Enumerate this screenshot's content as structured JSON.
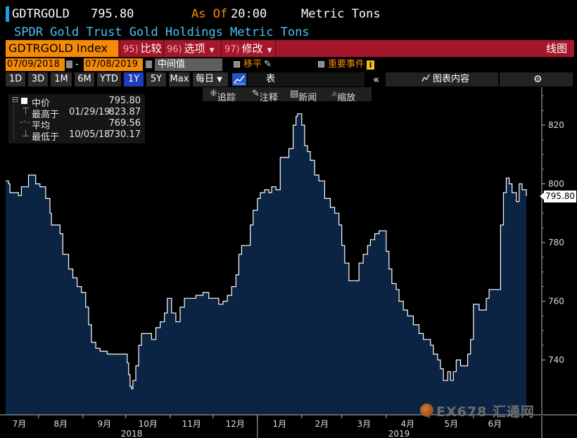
{
  "header": {
    "ticker": "GDTRGOLD",
    "last_value": "795.80",
    "as_of": "As Of",
    "time": "20:00",
    "unit": "Metric Tons",
    "subtitle": "SPDR Gold Trust Gold Holdings Metric Tons"
  },
  "menubar": {
    "index_label": "GDTRGOLD Index",
    "compare": {
      "num": "95)",
      "label": "比较"
    },
    "options": {
      "num": "96)",
      "label": "选项"
    },
    "edit": {
      "num": "97)",
      "label": "修改"
    },
    "chart_type": "线图"
  },
  "daterow": {
    "start_date": "07/09/2018",
    "dash": "-",
    "end_date": "07/08/2019",
    "price_field": "中间值",
    "shift_label": "移平",
    "events_label": "重要事件"
  },
  "periods": [
    "1D",
    "3D",
    "1M",
    "6M",
    "YTD",
    "1Y",
    "5Y",
    "Max"
  ],
  "selected_period": "1Y",
  "frequency": "每日",
  "table_label": "表",
  "chart_content_label": "图表内容",
  "tools": {
    "track": "追踪",
    "annotate": "注释",
    "news": "新闻",
    "zoom": "缩放"
  },
  "legend": {
    "mid": {
      "label": "中价",
      "value": "795.80"
    },
    "high": {
      "label": "最高于",
      "date": "01/29/19",
      "value": "823.87"
    },
    "avg": {
      "label": "平均",
      "value": "769.56"
    },
    "low": {
      "label": "最低于",
      "date": "10/05/18",
      "value": "730.17"
    }
  },
  "colors": {
    "accent": "#f58a07",
    "bar": "#a4162a",
    "fill": "#0c2444",
    "line": "#ffffff"
  },
  "watermark": "EX678 汇通网",
  "chart_data": {
    "type": "area",
    "title": "SPDR Gold Trust Gold Holdings Metric Tons",
    "ylabel": "Metric Tons",
    "ylim": [
      720,
      836
    ],
    "yticks": [
      740,
      760,
      780,
      800,
      820
    ],
    "current_value": "795.80",
    "x_month_labels": [
      "7月",
      "8月",
      "9月",
      "10月",
      "11月",
      "12月",
      "1月",
      "2月",
      "3月",
      "4月",
      "5月",
      "6月"
    ],
    "x_year_labels": [
      "2018",
      "2019"
    ],
    "x_start_date": "2018-07-09",
    "x_end_date": "2019-07-08",
    "points": [
      [
        "2018-07-09",
        801
      ],
      [
        "2018-07-11",
        800
      ],
      [
        "2018-07-12",
        797
      ],
      [
        "2018-07-18",
        796
      ],
      [
        "2018-07-20",
        799
      ],
      [
        "2018-07-24",
        799
      ],
      [
        "2018-07-25",
        803
      ],
      [
        "2018-07-27",
        803
      ],
      [
        "2018-07-30",
        800
      ],
      [
        "2018-08-02",
        799
      ],
      [
        "2018-08-06",
        795
      ],
      [
        "2018-08-09",
        790
      ],
      [
        "2018-08-10",
        786
      ],
      [
        "2018-08-15",
        786
      ],
      [
        "2018-08-16",
        783
      ],
      [
        "2018-08-18",
        776
      ],
      [
        "2018-08-22",
        771
      ],
      [
        "2018-08-25",
        768
      ],
      [
        "2018-08-28",
        765
      ],
      [
        "2018-08-31",
        763
      ],
      [
        "2018-09-03",
        758
      ],
      [
        "2018-09-05",
        752
      ],
      [
        "2018-09-07",
        746
      ],
      [
        "2018-09-10",
        744
      ],
      [
        "2018-09-13",
        743
      ],
      [
        "2018-09-18",
        742
      ],
      [
        "2018-09-23",
        742
      ],
      [
        "2018-09-28",
        742
      ],
      [
        "2018-10-01",
        742
      ],
      [
        "2018-10-02",
        739
      ],
      [
        "2018-10-03",
        735
      ],
      [
        "2018-10-04",
        731
      ],
      [
        "2018-10-05",
        730.2
      ],
      [
        "2018-10-06",
        733
      ],
      [
        "2018-10-08",
        738
      ],
      [
        "2018-10-10",
        745
      ],
      [
        "2018-10-12",
        749
      ],
      [
        "2018-10-16",
        749
      ],
      [
        "2018-10-19",
        747
      ],
      [
        "2018-10-22",
        751
      ],
      [
        "2018-10-25",
        753
      ],
      [
        "2018-10-28",
        756
      ],
      [
        "2018-10-30",
        761
      ],
      [
        "2018-11-02",
        756
      ],
      [
        "2018-11-05",
        753
      ],
      [
        "2018-11-08",
        758
      ],
      [
        "2018-11-11",
        761
      ],
      [
        "2018-11-16",
        761
      ],
      [
        "2018-11-19",
        762
      ],
      [
        "2018-11-24",
        763
      ],
      [
        "2018-11-28",
        761
      ],
      [
        "2018-12-03",
        761
      ],
      [
        "2018-12-05",
        759
      ],
      [
        "2018-12-08",
        760
      ],
      [
        "2018-12-11",
        762
      ],
      [
        "2018-12-14",
        765
      ],
      [
        "2018-12-17",
        769
      ],
      [
        "2018-12-19",
        776
      ],
      [
        "2018-12-21",
        779
      ],
      [
        "2018-12-25",
        779
      ],
      [
        "2018-12-27",
        786
      ],
      [
        "2018-12-29",
        791
      ],
      [
        "2019-01-01",
        795
      ],
      [
        "2019-01-03",
        797
      ],
      [
        "2019-01-06",
        798
      ],
      [
        "2019-01-09",
        797
      ],
      [
        "2019-01-11",
        799
      ],
      [
        "2019-01-14",
        798
      ],
      [
        "2019-01-17",
        809
      ],
      [
        "2019-01-21",
        809
      ],
      [
        "2019-01-23",
        812
      ],
      [
        "2019-01-26",
        820
      ],
      [
        "2019-01-28",
        823
      ],
      [
        "2019-01-29",
        823.87
      ],
      [
        "2019-02-01",
        820
      ],
      [
        "2019-02-03",
        813
      ],
      [
        "2019-02-05",
        811
      ],
      [
        "2019-02-07",
        808
      ],
      [
        "2019-02-10",
        803
      ],
      [
        "2019-02-13",
        801
      ],
      [
        "2019-02-17",
        795
      ],
      [
        "2019-02-21",
        792
      ],
      [
        "2019-02-24",
        790
      ],
      [
        "2019-02-27",
        786
      ],
      [
        "2019-03-01",
        779
      ],
      [
        "2019-03-03",
        773
      ],
      [
        "2019-03-06",
        767
      ],
      [
        "2019-03-10",
        767
      ],
      [
        "2019-03-13",
        773
      ],
      [
        "2019-03-16",
        776
      ],
      [
        "2019-03-19",
        779
      ],
      [
        "2019-03-21",
        781
      ],
      [
        "2019-03-24",
        783
      ],
      [
        "2019-03-27",
        784
      ],
      [
        "2019-03-30",
        784
      ],
      [
        "2019-04-01",
        777
      ],
      [
        "2019-04-03",
        771
      ],
      [
        "2019-04-05",
        766
      ],
      [
        "2019-04-08",
        764
      ],
      [
        "2019-04-10",
        760
      ],
      [
        "2019-04-13",
        757
      ],
      [
        "2019-04-16",
        755
      ],
      [
        "2019-04-20",
        752
      ],
      [
        "2019-04-24",
        749
      ],
      [
        "2019-04-27",
        747
      ],
      [
        "2019-04-30",
        747
      ],
      [
        "2019-05-02",
        745
      ],
      [
        "2019-05-04",
        742
      ],
      [
        "2019-05-07",
        740
      ],
      [
        "2019-05-09",
        737
      ],
      [
        "2019-05-11",
        733
      ],
      [
        "2019-05-14",
        736
      ],
      [
        "2019-05-16",
        733
      ],
      [
        "2019-05-18",
        736
      ],
      [
        "2019-05-20",
        740
      ],
      [
        "2019-05-23",
        738
      ],
      [
        "2019-05-26",
        738
      ],
      [
        "2019-05-28",
        742
      ],
      [
        "2019-05-30",
        747
      ],
      [
        "2019-06-01",
        759
      ],
      [
        "2019-06-03",
        759
      ],
      [
        "2019-06-05",
        757
      ],
      [
        "2019-06-08",
        757
      ],
      [
        "2019-06-10",
        761
      ],
      [
        "2019-06-12",
        764
      ],
      [
        "2019-06-15",
        764
      ],
      [
        "2019-06-18",
        764
      ],
      [
        "2019-06-20",
        786
      ],
      [
        "2019-06-22",
        797
      ],
      [
        "2019-06-24",
        802
      ],
      [
        "2019-06-26",
        800
      ],
      [
        "2019-06-28",
        797
      ],
      [
        "2019-07-01",
        794
      ],
      [
        "2019-07-03",
        800
      ],
      [
        "2019-07-05",
        798
      ],
      [
        "2019-07-08",
        795.8
      ]
    ]
  }
}
